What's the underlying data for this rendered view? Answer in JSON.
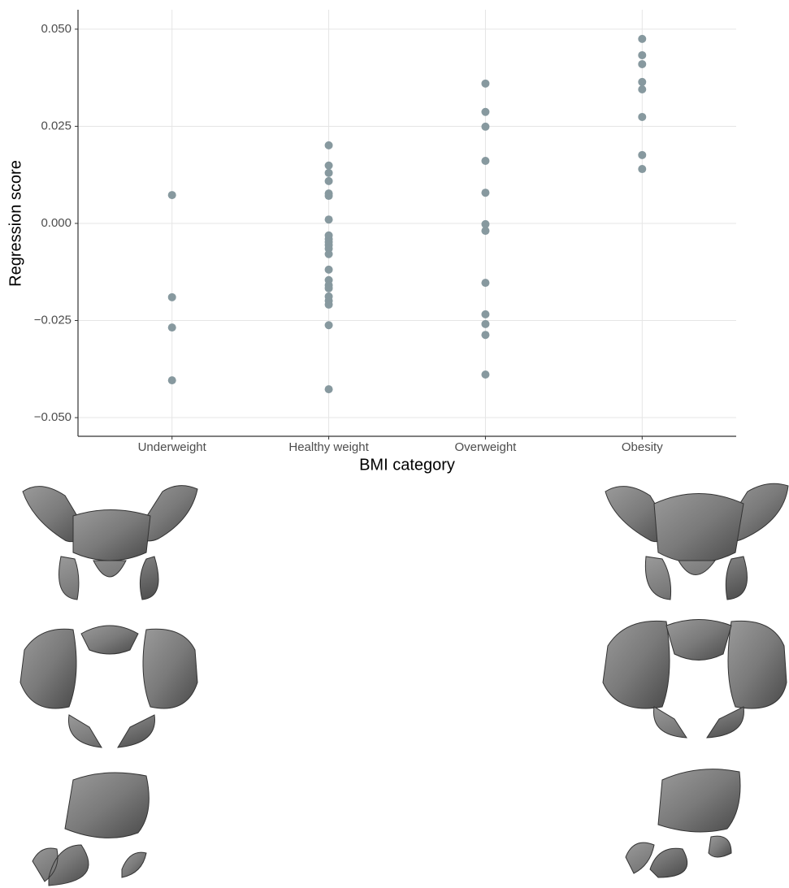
{
  "chart_data": {
    "type": "scatter",
    "x_label": "BMI category",
    "y_label": "Regression score",
    "categories": [
      "Underweight",
      "Healthy weight",
      "Overweight",
      "Obesity"
    ],
    "values": [
      [
        0.0073,
        -0.019,
        -0.0268,
        -0.0404
      ],
      [
        0.0201,
        0.0149,
        0.013,
        0.0109,
        0.0077,
        0.0071,
        0.001,
        -0.0031,
        -0.004,
        -0.0048,
        -0.0056,
        -0.0065,
        -0.0079,
        -0.0119,
        -0.0146,
        -0.0159,
        -0.0167,
        -0.0188,
        -0.0199,
        -0.0209,
        -0.0262,
        -0.0427
      ],
      [
        0.036,
        0.0287,
        0.0249,
        0.0161,
        0.0079,
        -0.0002,
        -0.0019,
        -0.0153,
        -0.0234,
        -0.0259,
        -0.0287,
        -0.0389
      ],
      [
        0.0475,
        0.0433,
        0.041,
        0.0364,
        0.0345,
        0.0274,
        0.0176,
        0.014
      ]
    ],
    "color": "#87999f",
    "ylim": [
      -0.0548,
      0.055
    ],
    "yticks": [
      {
        "value": -0.05,
        "label": "−0.050"
      },
      {
        "value": -0.025,
        "label": "−0.025"
      },
      {
        "value": 0,
        "label": "0.000"
      },
      {
        "value": 0.025,
        "label": "0.025"
      },
      {
        "value": 0.05,
        "label": "0.050"
      }
    ],
    "grid": true
  }
}
